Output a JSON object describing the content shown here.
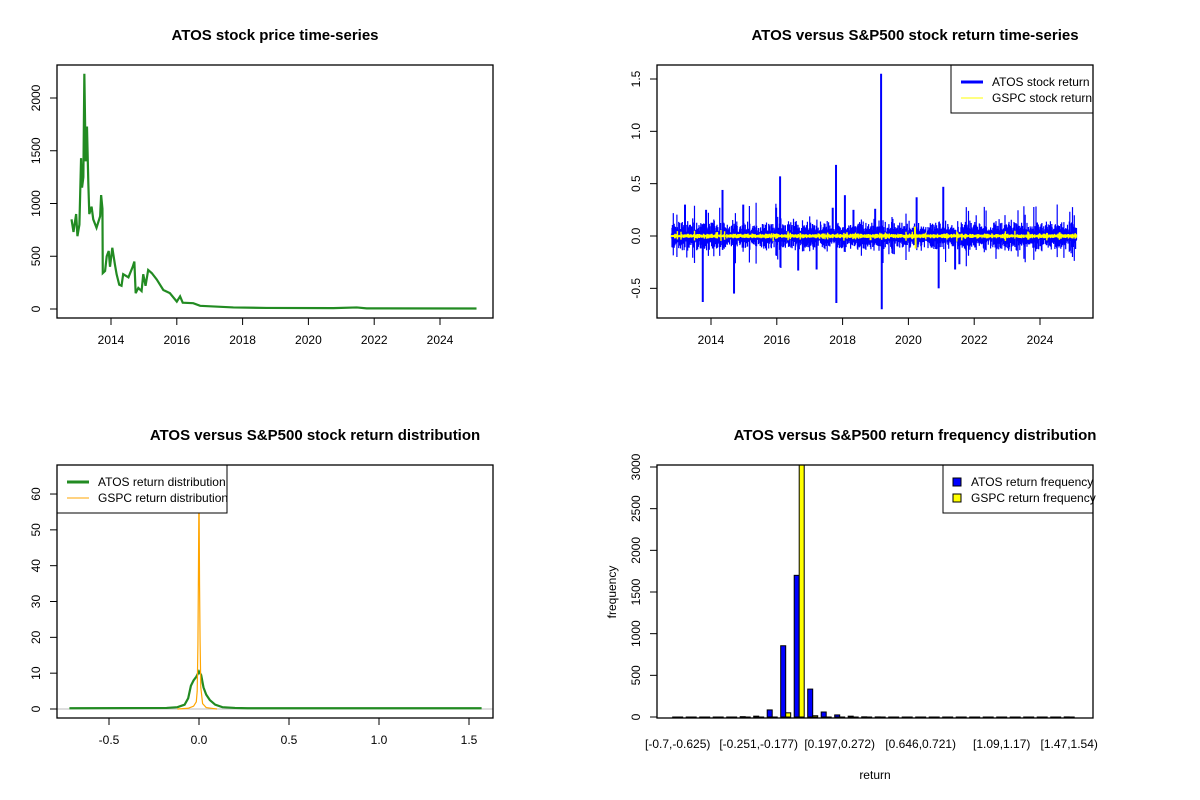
{
  "chart_data": [
    {
      "type": "line",
      "title": "ATOS stock price time-series",
      "xlabel": "",
      "ylabel": "",
      "xlim": [
        2012.4,
        2025.5
      ],
      "ylim": [
        0,
        2300
      ],
      "x_ticks": [
        {
          "v": 2014,
          "label": "2014"
        },
        {
          "v": 2016,
          "label": "2016"
        },
        {
          "v": 2018,
          "label": "2018"
        },
        {
          "v": 2020,
          "label": "2020"
        },
        {
          "v": 2022,
          "label": "2022"
        },
        {
          "v": 2024,
          "label": "2024"
        }
      ],
      "y_ticks": [
        {
          "v": 0,
          "label": "0"
        },
        {
          "v": 500,
          "label": "500"
        },
        {
          "v": 1000,
          "label": "1000"
        },
        {
          "v": 1500,
          "label": "1500"
        },
        {
          "v": 2000,
          "label": "2000"
        }
      ],
      "series": [
        {
          "name": "ATOS price",
          "color": "#228B22",
          "points": [
            [
              2012.8,
              850
            ],
            [
              2012.86,
              730
            ],
            [
              2012.94,
              900
            ],
            [
              2012.98,
              690
            ],
            [
              2013.04,
              800
            ],
            [
              2013.09,
              1430
            ],
            [
              2013.12,
              1150
            ],
            [
              2013.16,
              1250
            ],
            [
              2013.19,
              2230
            ],
            [
              2013.23,
              1400
            ],
            [
              2013.27,
              1730
            ],
            [
              2013.31,
              1200
            ],
            [
              2013.34,
              900
            ],
            [
              2013.41,
              970
            ],
            [
              2013.46,
              850
            ],
            [
              2013.56,
              770
            ],
            [
              2013.67,
              880
            ],
            [
              2013.7,
              1080
            ],
            [
              2013.74,
              950
            ],
            [
              2013.75,
              340
            ],
            [
              2013.82,
              360
            ],
            [
              2013.87,
              500
            ],
            [
              2013.93,
              550
            ],
            [
              2013.97,
              400
            ],
            [
              2014.04,
              580
            ],
            [
              2014.12,
              420
            ],
            [
              2014.17,
              330
            ],
            [
              2014.25,
              230
            ],
            [
              2014.32,
              220
            ],
            [
              2014.37,
              330
            ],
            [
              2014.53,
              300
            ],
            [
              2014.66,
              400
            ],
            [
              2014.71,
              450
            ],
            [
              2014.75,
              150
            ],
            [
              2014.83,
              200
            ],
            [
              2014.93,
              170
            ],
            [
              2014.98,
              330
            ],
            [
              2015.05,
              220
            ],
            [
              2015.13,
              370
            ],
            [
              2015.24,
              340
            ],
            [
              2015.39,
              280
            ],
            [
              2015.59,
              180
            ],
            [
              2015.79,
              150
            ],
            [
              2016.0,
              70
            ],
            [
              2016.1,
              120
            ],
            [
              2016.18,
              60
            ],
            [
              2016.5,
              55
            ],
            [
              2016.71,
              30
            ],
            [
              2017.72,
              15
            ],
            [
              2018.73,
              10
            ],
            [
              2020.76,
              8
            ],
            [
              2021.47,
              15
            ],
            [
              2021.77,
              6
            ],
            [
              2025.11,
              5
            ]
          ]
        }
      ]
    },
    {
      "type": "line",
      "title": "ATOS versus S&P500 stock return time-series",
      "xlim": [
        2012.4,
        2025.5
      ],
      "ylim": [
        -0.75,
        1.6
      ],
      "x_ticks": [
        {
          "v": 2014,
          "label": "2014"
        },
        {
          "v": 2016,
          "label": "2016"
        },
        {
          "v": 2018,
          "label": "2018"
        },
        {
          "v": 2020,
          "label": "2020"
        },
        {
          "v": 2022,
          "label": "2022"
        },
        {
          "v": 2024,
          "label": "2024"
        }
      ],
      "y_ticks": [
        {
          "v": -0.5,
          "label": "-0.5"
        },
        {
          "v": 0,
          "label": "0.0"
        },
        {
          "v": 0.5,
          "label": "0.5"
        },
        {
          "v": 1.0,
          "label": "1.0"
        },
        {
          "v": 1.5,
          "label": "1.5"
        }
      ],
      "legend": {
        "position": "top-right",
        "items": [
          {
            "label": "ATOS stock return",
            "color": "#0000FF"
          },
          {
            "label": "GSPC stock return",
            "color": "#FFFF00"
          }
        ]
      },
      "series": [
        {
          "name": "ATOS stock return",
          "color": "#0000FF",
          "x_range": [
            2012.8,
            2025.11
          ],
          "typical_abs_return": 0.07,
          "spikes": [
            [
              2013.21,
              0.3
            ],
            [
              2013.75,
              -0.63
            ],
            [
              2013.85,
              0.25
            ],
            [
              2014.35,
              0.44
            ],
            [
              2014.7,
              -0.55
            ],
            [
              2014.98,
              0.3
            ],
            [
              2015.98,
              0.27
            ],
            [
              2016.1,
              0.57
            ],
            [
              2016.11,
              -0.3
            ],
            [
              2016.65,
              -0.33
            ],
            [
              2017.21,
              -0.32
            ],
            [
              2017.7,
              0.27
            ],
            [
              2017.8,
              0.68
            ],
            [
              2017.81,
              -0.64
            ],
            [
              2018.07,
              0.39
            ],
            [
              2018.33,
              0.25
            ],
            [
              2018.99,
              0.26
            ],
            [
              2019.17,
              1.55
            ],
            [
              2019.19,
              -0.7
            ],
            [
              2020.25,
              0.37
            ],
            [
              2020.92,
              -0.5
            ],
            [
              2021.06,
              0.47
            ],
            [
              2021.42,
              -0.32
            ],
            [
              2021.55,
              -0.27
            ]
          ]
        },
        {
          "name": "GSPC stock return",
          "color": "#FFFF00",
          "x_range": [
            2012.8,
            2025.11
          ],
          "typical_abs_return": 0.012,
          "spikes": [
            [
              2020.2,
              0.09
            ],
            [
              2020.22,
              -0.12
            ],
            [
              2018.85,
              -0.04
            ]
          ]
        }
      ]
    },
    {
      "type": "line",
      "title": "ATOS versus S&P500 stock return distribution",
      "xlim": [
        -0.79,
        1.64
      ],
      "ylim": [
        0,
        68
      ],
      "x_ticks": [
        {
          "v": -0.5,
          "label": "-0.5"
        },
        {
          "v": 0,
          "label": "0.0"
        },
        {
          "v": 0.5,
          "label": "0.5"
        },
        {
          "v": 1.0,
          "label": "1.0"
        },
        {
          "v": 1.5,
          "label": "1.5"
        }
      ],
      "y_ticks": [
        {
          "v": 0,
          "label": "0"
        },
        {
          "v": 10,
          "label": "10"
        },
        {
          "v": 20,
          "label": "20"
        },
        {
          "v": 30,
          "label": "30"
        },
        {
          "v": 40,
          "label": "40"
        },
        {
          "v": 50,
          "label": "50"
        },
        {
          "v": 60,
          "label": "60"
        }
      ],
      "legend": {
        "position": "top-left",
        "items": [
          {
            "label": "ATOS return distribution",
            "color": "#228B22"
          },
          {
            "label": "GSPC return distribution",
            "color": "#FFA500"
          }
        ]
      },
      "series": [
        {
          "name": "ATOS return distribution",
          "color": "#228B22",
          "points": [
            [
              -0.72,
              0.2
            ],
            [
              -0.18,
              0.3
            ],
            [
              -0.12,
              0.5
            ],
            [
              -0.08,
              1.2
            ],
            [
              -0.06,
              3
            ],
            [
              -0.045,
              6.5
            ],
            [
              -0.03,
              8
            ],
            [
              -0.015,
              9
            ],
            [
              0,
              10.5
            ],
            [
              0.012,
              9.5
            ],
            [
              0.025,
              6
            ],
            [
              0.04,
              4
            ],
            [
              0.06,
              2.5
            ],
            [
              0.09,
              1.2
            ],
            [
              0.13,
              0.5
            ],
            [
              0.2,
              0.3
            ],
            [
              0.27,
              0.2
            ],
            [
              1.57,
              0.2
            ]
          ]
        },
        {
          "name": "GSPC return distribution",
          "color": "#FFA500",
          "points": [
            [
              -0.12,
              0
            ],
            [
              -0.06,
              0.2
            ],
            [
              -0.03,
              0.8
            ],
            [
              -0.015,
              2
            ],
            [
              -0.01,
              5
            ],
            [
              -0.006,
              18
            ],
            [
              -0.003,
              39
            ],
            [
              0,
              63
            ],
            [
              0.003,
              35
            ],
            [
              0.006,
              19
            ],
            [
              0.01,
              6
            ],
            [
              0.02,
              1.5
            ],
            [
              0.04,
              0.4
            ],
            [
              0.07,
              0.2
            ],
            [
              0.1,
              0
            ]
          ]
        }
      ]
    },
    {
      "type": "bar",
      "title": "ATOS versus S&P500 return frequency distribution",
      "xlabel": "return",
      "ylabel": "frequency",
      "ylim": [
        0,
        3000
      ],
      "bin_count": 30,
      "x_tick_labels": [
        {
          "bin": 0,
          "label": "[-0.7,-0.625)"
        },
        {
          "bin": 6,
          "label": "[-0.251,-0.177)"
        },
        {
          "bin": 12,
          "label": "[0.197,0.272)"
        },
        {
          "bin": 18,
          "label": "[0.646,0.721)"
        },
        {
          "bin": 24,
          "label": "[1.09,1.17)"
        },
        {
          "bin": 29,
          "label": "[1.47,1.54)"
        }
      ],
      "y_ticks": [
        {
          "v": 0,
          "label": "0"
        },
        {
          "v": 500,
          "label": "500"
        },
        {
          "v": 1000,
          "label": "1000"
        },
        {
          "v": 1500,
          "label": "1500"
        },
        {
          "v": 2000,
          "label": "2000"
        },
        {
          "v": 2500,
          "label": "2500"
        },
        {
          "v": 3000,
          "label": "3000"
        }
      ],
      "legend": {
        "position": "top-right",
        "items": [
          {
            "label": "ATOS return frequency",
            "color": "#0000FF"
          },
          {
            "label": "GSPC return frequency",
            "color": "#FFFF00"
          }
        ]
      },
      "series": [
        {
          "name": "ATOS return frequency",
          "color": "#0000FF",
          "values": [
            0,
            0,
            0,
            0,
            0,
            4,
            10,
            85,
            855,
            1700,
            335,
            60,
            25,
            10,
            2,
            1,
            0,
            0,
            0,
            0,
            0,
            0,
            0,
            0,
            0,
            0,
            0,
            0,
            0,
            1
          ]
        },
        {
          "name": "GSPC return frequency",
          "color": "#FFFF00",
          "values": [
            0,
            0,
            0,
            0,
            0,
            0,
            0,
            0,
            50,
            3080,
            15,
            0,
            0,
            0,
            0,
            0,
            0,
            0,
            0,
            0,
            0,
            0,
            0,
            0,
            0,
            0,
            0,
            0,
            0,
            0
          ]
        }
      ]
    }
  ]
}
